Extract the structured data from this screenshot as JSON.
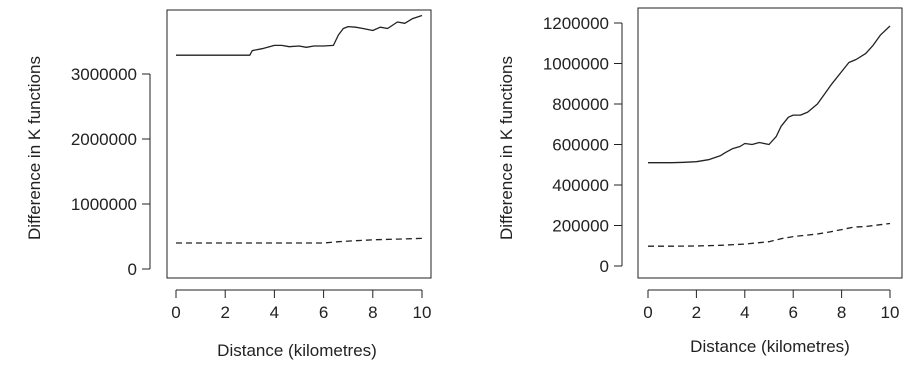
{
  "colors": {
    "line": "#222222",
    "axis": "#222222",
    "background": "#ffffff"
  },
  "chart_data": [
    {
      "type": "line",
      "title": "",
      "xlabel": "Distance (kilometres)",
      "ylabel": "Difference in K functions",
      "xlim": [
        0,
        10
      ],
      "ylim": [
        0,
        4000000
      ],
      "x_ticks": [
        "0",
        "2",
        "4",
        "6",
        "8",
        "10"
      ],
      "y_ticks": [
        "0",
        "1000000",
        "2000000",
        "3000000"
      ],
      "grid": false,
      "legend": "none",
      "series": [
        {
          "style": "solid",
          "x": [
            0,
            0.5,
            1.0,
            1.5,
            2.0,
            2.5,
            3.0,
            3.1,
            3.5,
            4.0,
            4.3,
            4.6,
            5.0,
            5.3,
            5.6,
            6.0,
            6.4,
            6.6,
            6.8,
            7.0,
            7.3,
            7.6,
            8.0,
            8.3,
            8.6,
            9.0,
            9.3,
            9.6,
            10.0
          ],
          "y": [
            3290000,
            3290000,
            3290000,
            3290000,
            3290000,
            3290000,
            3290000,
            3360000,
            3390000,
            3440000,
            3440000,
            3420000,
            3430000,
            3410000,
            3430000,
            3430000,
            3440000,
            3600000,
            3700000,
            3730000,
            3720000,
            3700000,
            3670000,
            3720000,
            3700000,
            3800000,
            3780000,
            3850000,
            3900000
          ]
        },
        {
          "style": "dashed",
          "x": [
            0,
            2,
            4,
            6,
            6.6,
            7,
            8,
            9,
            10
          ],
          "y": [
            400000,
            400000,
            400000,
            400000,
            420000,
            430000,
            450000,
            460000,
            470000
          ]
        }
      ]
    },
    {
      "type": "line",
      "title": "",
      "xlabel": "Distance (kilometres)",
      "ylabel": "Difference in K functions",
      "xlim": [
        0,
        10
      ],
      "ylim": [
        0,
        1200000
      ],
      "x_ticks": [
        "0",
        "2",
        "4",
        "6",
        "8",
        "10"
      ],
      "y_ticks": [
        "0",
        "200000",
        "400000",
        "600000",
        "800000",
        "1000000",
        "1200000"
      ],
      "grid": false,
      "legend": "none",
      "series": [
        {
          "style": "solid",
          "x": [
            0,
            0.5,
            1.0,
            1.5,
            2.0,
            2.5,
            3.0,
            3.2,
            3.5,
            3.8,
            4.0,
            4.3,
            4.6,
            5.0,
            5.3,
            5.5,
            5.8,
            6.0,
            6.3,
            6.6,
            7.0,
            7.3,
            7.6,
            8.0,
            8.3,
            8.6,
            9.0,
            9.3,
            9.6,
            10.0
          ],
          "y": [
            510000,
            510000,
            510000,
            512000,
            515000,
            525000,
            545000,
            560000,
            580000,
            590000,
            605000,
            600000,
            610000,
            600000,
            640000,
            690000,
            735000,
            745000,
            745000,
            760000,
            800000,
            850000,
            900000,
            960000,
            1005000,
            1020000,
            1050000,
            1090000,
            1140000,
            1185000
          ]
        },
        {
          "style": "dashed",
          "x": [
            0,
            1,
            2,
            3,
            4,
            5,
            5.5,
            6,
            7,
            7.5,
            8,
            8.5,
            9,
            10
          ],
          "y": [
            98000,
            98000,
            99000,
            102000,
            108000,
            120000,
            135000,
            145000,
            158000,
            168000,
            180000,
            192000,
            195000,
            210000
          ]
        }
      ]
    }
  ]
}
